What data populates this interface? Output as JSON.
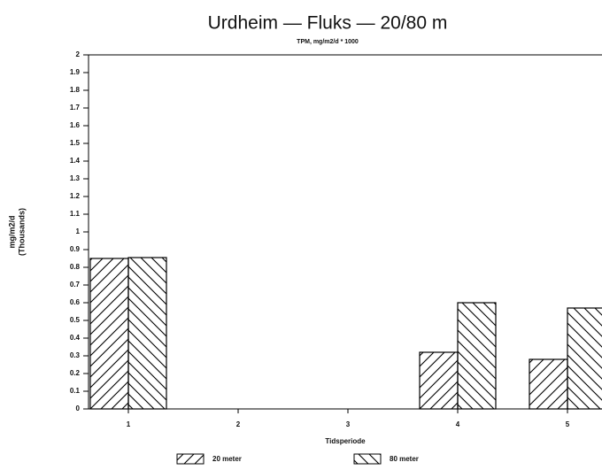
{
  "chart_data": {
    "type": "bar",
    "title": "Urdheim — Fluks — 20/80 m",
    "subtitle": "TPM, mg/m2/d * 1000",
    "y_label": [
      "mg/m2/d",
      "(Thousands)"
    ],
    "x_label": "Tidsperiode",
    "categories": [
      "1",
      "2",
      "3",
      "4",
      "5"
    ],
    "series": [
      {
        "name": "20 meter",
        "color": "#000000",
        "values": [
          0.85,
          0,
          0,
          0.32,
          0.28
        ]
      },
      {
        "name": "80 meter",
        "color": "#000000",
        "values": [
          0.855,
          0,
          0,
          0.6,
          0.57
        ]
      }
    ],
    "ylim": [
      0,
      2
    ],
    "yticks": [
      0,
      0.1,
      0.2,
      0.3,
      0.4,
      0.5,
      0.6,
      0.7,
      0.8,
      0.9,
      1,
      1.1,
      1.2,
      1.3,
      1.4,
      1.5,
      1.6,
      1.7,
      1.8,
      1.9,
      2
    ],
    "grid": false,
    "legend": "bottom"
  }
}
